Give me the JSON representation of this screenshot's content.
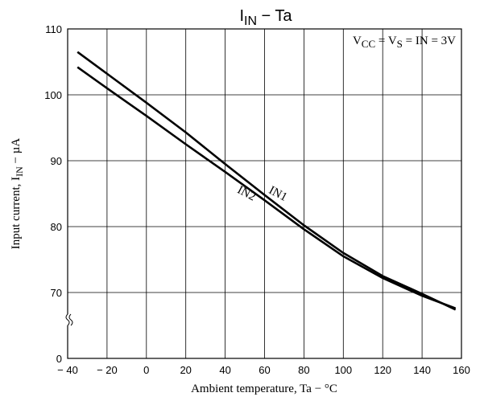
{
  "chart_data": {
    "type": "line",
    "title": {
      "main": "I",
      "sub": "IN",
      "rest": " − Ta"
    },
    "annotation": {
      "a": "V",
      "b": "CC",
      "c": " = V",
      "d": "S",
      "e": " = IN = 3V"
    },
    "xlabel": "Ambient temperature, Ta  −  °C",
    "ylabel": {
      "main": "Input current, I",
      "sub": "IN",
      "rest": "  −  µA"
    },
    "x": [
      -35,
      -20,
      0,
      20,
      40,
      60,
      80,
      100,
      120,
      140,
      157
    ],
    "series": [
      {
        "name": "IN1",
        "color": "#000000",
        "values": [
          106.5,
          103.2,
          98.8,
          94.3,
          89.5,
          84.8,
          80.2,
          76.0,
          72.5,
          69.8,
          67.4
        ]
      },
      {
        "name": "IN2",
        "color": "#000000",
        "values": [
          104.2,
          101.0,
          96.8,
          92.5,
          88.3,
          84.0,
          79.6,
          75.5,
          72.2,
          69.5,
          67.6
        ]
      }
    ],
    "xlim": [
      -40,
      160
    ],
    "xticks": [
      {
        "value": -40,
        "label": "− 40"
      },
      {
        "value": -20,
        "label": "− 20"
      },
      0,
      20,
      40,
      60,
      80,
      100,
      120,
      140,
      160
    ],
    "ylim": [
      0,
      110
    ],
    "ybreak": [
      0,
      60
    ],
    "yticks": [
      0,
      70,
      80,
      90,
      100,
      110
    ],
    "grid": true
  }
}
